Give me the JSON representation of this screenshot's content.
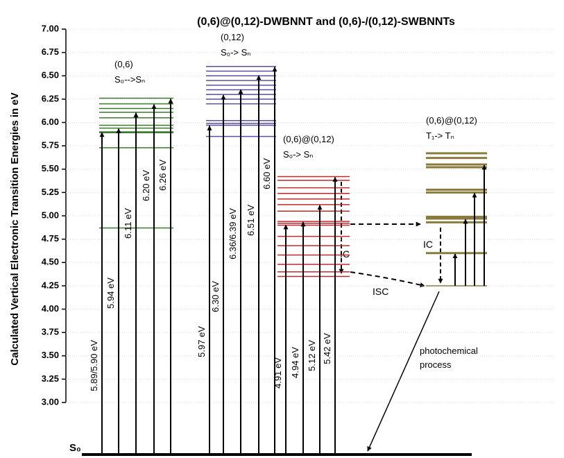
{
  "chart_data": {
    "type": "level-diagram",
    "title": "(0,6)@(0,12)-DWBNNT and (0,6)-/(0,12)-SWBNNTs",
    "y_label": "Calculated Vertical Electronic Transition Energies in eV",
    "ylim": [
      3,
      7
    ],
    "yticks": [
      {
        "value": 3,
        "label": "3.00"
      },
      {
        "value": 3.25,
        "label": "3.25"
      },
      {
        "value": 3.5,
        "label": "3.50"
      },
      {
        "value": 3.75,
        "label": "3.75"
      },
      {
        "value": 4,
        "label": "4.00"
      },
      {
        "value": 4.25,
        "label": "4.25"
      },
      {
        "value": 4.5,
        "label": "4.50"
      },
      {
        "value": 4.75,
        "label": "4.75"
      },
      {
        "value": 5,
        "label": "5.00"
      },
      {
        "value": 5.25,
        "label": "5.25"
      },
      {
        "value": 5.5,
        "label": "5.50"
      },
      {
        "value": 5.75,
        "label": "5.75"
      },
      {
        "value": 6,
        "label": "6.00"
      },
      {
        "value": 6.25,
        "label": "6.25"
      },
      {
        "value": 6.5,
        "label": "6.50"
      },
      {
        "value": 6.75,
        "label": "6.75"
      },
      {
        "value": 7,
        "label": "7.00"
      }
    ],
    "grid": true,
    "baseline_label": "S₀",
    "groups": [
      {
        "name": "(0,6)",
        "subtitle": "S₀-->Sₙ",
        "color": "#3b7a2b",
        "levels": [
          6.26,
          6.2,
          6.15,
          6.11,
          6.05,
          5.97,
          5.94,
          5.9,
          5.89,
          5.73,
          4.87
        ],
        "transitions": {
          "values": [
            5.9,
            5.94,
            6.11,
            6.2,
            6.26
          ],
          "value_labels": [
            "5.89/5.90 eV",
            "5.94 eV",
            "6.11 eV",
            "6.20 eV",
            "6.26 eV"
          ]
        }
      },
      {
        "name": "(0,12)",
        "subtitle": "S₀-> Sₙ",
        "color": "#5a4ea0",
        "levels": [
          6.6,
          6.55,
          6.5,
          6.45,
          6.4,
          6.35,
          6.3,
          6.25,
          6.2,
          6.02,
          5.99,
          5.97,
          5.85
        ],
        "transitions": {
          "values": [
            5.97,
            6.3,
            6.36,
            6.51,
            6.6
          ],
          "value_labels": [
            "5.97 eV",
            "6.30 eV",
            "6.36/6.39 eV",
            "6.51 eV",
            "6.60 eV"
          ]
        }
      },
      {
        "name": "(0,6)@(0,12)",
        "subtitle": "S₀-> Sₙ",
        "color": "#c0282e",
        "levels": [
          5.42,
          5.38,
          5.3,
          5.24,
          5.18,
          5.12,
          5.05,
          4.94,
          4.92,
          4.9,
          4.78,
          4.68,
          4.58,
          4.48,
          4.4,
          4.35
        ],
        "transitions": {
          "values": [
            4.91,
            4.94,
            5.12,
            5.42
          ],
          "value_labels": [
            "4.91 eV",
            "4.94 eV",
            "5.12 eV",
            "5.42 eV"
          ]
        }
      },
      {
        "name": "(0,6)@(0,12)",
        "subtitle": "T₁-> Tₙ",
        "color": "#8a7b3c",
        "start": 4.25,
        "levels": [
          5.67,
          5.62,
          5.55,
          5.52,
          5.28,
          5.25,
          4.99,
          4.97,
          4.93,
          4.6
        ],
        "transitions": {
          "values": [
            4.6,
            4.97,
            5.25,
            5.55
          ]
        }
      }
    ],
    "annotations": [
      "IC",
      "IC",
      "ISC",
      "photochemical",
      "process"
    ]
  }
}
